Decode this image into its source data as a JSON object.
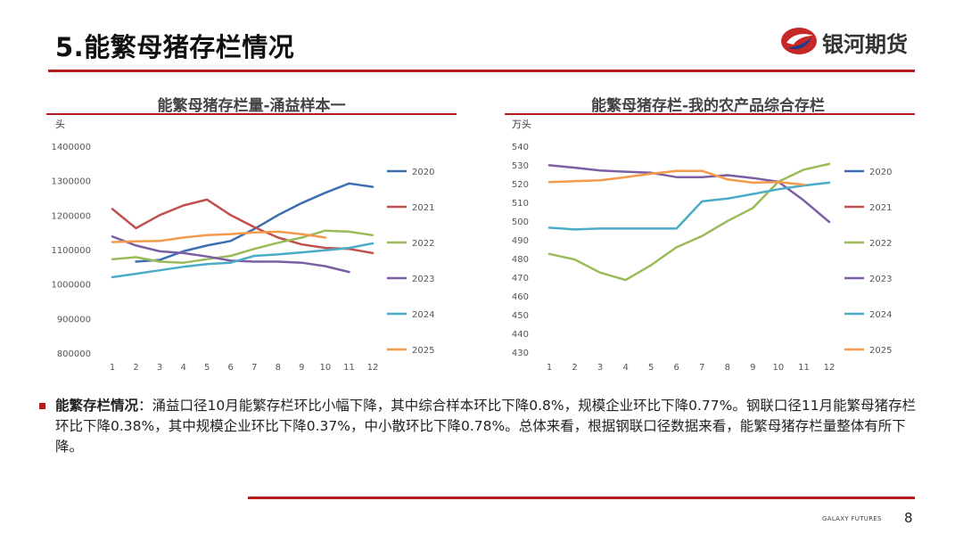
{
  "header": {
    "title": "5.能繁母猪存栏情况",
    "brand": "银河期货"
  },
  "colors": {
    "accent": "#b71c1c",
    "s2020": "#3d6fb0",
    "s2021": "#c0504d",
    "s2022": "#9bbb59",
    "s2023": "#7b5ea3",
    "s2024": "#4aacc6",
    "s2025": "#f39a4b"
  },
  "chart_data": [
    {
      "type": "line",
      "title": "能繁母猪存栏量-涌益样本一",
      "unit": "头",
      "x": [
        1,
        2,
        3,
        4,
        5,
        6,
        7,
        8,
        9,
        10,
        11,
        12
      ],
      "ylim": [
        800000,
        1400000
      ],
      "yticks": [
        800000,
        900000,
        1000000,
        1100000,
        1200000,
        1300000,
        1400000
      ],
      "legend_position": "right",
      "series": [
        {
          "name": "2020",
          "values": [
            null,
            1065000,
            1070000,
            1095000,
            1112000,
            1125000,
            1160000,
            1200000,
            1235000,
            1265000,
            1292000,
            1282000
          ]
        },
        {
          "name": "2021",
          "values": [
            1218000,
            1162000,
            1200000,
            1228000,
            1245000,
            1200000,
            1165000,
            1135000,
            1115000,
            1105000,
            1102000,
            1090000
          ]
        },
        {
          "name": "2022",
          "values": [
            1072000,
            1078000,
            1065000,
            1062000,
            1072000,
            1082000,
            1102000,
            1120000,
            1135000,
            1155000,
            1152000,
            1142000
          ]
        },
        {
          "name": "2023",
          "values": [
            1138000,
            1112000,
            1095000,
            1090000,
            1080000,
            1068000,
            1065000,
            1065000,
            1062000,
            1052000,
            1035000,
            null
          ]
        },
        {
          "name": "2024",
          "values": [
            1020000,
            1030000,
            1040000,
            1050000,
            1058000,
            1062000,
            1082000,
            1086000,
            1092000,
            1098000,
            1105000,
            1118000
          ]
        },
        {
          "name": "2025",
          "values": [
            1122000,
            1124000,
            1125000,
            1135000,
            1142000,
            1145000,
            1150000,
            1152000,
            1145000,
            1135000,
            null,
            null
          ]
        }
      ]
    },
    {
      "type": "line",
      "title": "能繁母猪存栏-我的农产品综合存栏",
      "unit": "万头",
      "x": [
        1,
        2,
        3,
        4,
        5,
        6,
        7,
        8,
        9,
        10,
        11,
        12
      ],
      "ylim": [
        430,
        540
      ],
      "yticks": [
        430,
        440,
        450,
        460,
        470,
        480,
        490,
        500,
        510,
        520,
        530,
        540
      ],
      "legend_position": "right",
      "series": [
        {
          "name": "2020",
          "values": [
            null,
            null,
            null,
            null,
            null,
            null,
            null,
            null,
            null,
            null,
            null,
            null
          ]
        },
        {
          "name": "2021",
          "values": [
            null,
            null,
            null,
            null,
            null,
            null,
            null,
            null,
            null,
            null,
            null,
            null
          ]
        },
        {
          "name": "2022",
          "values": [
            482.5,
            479.5,
            472.5,
            468.5,
            476.5,
            486,
            492,
            500,
            507,
            521,
            527.5,
            530.5
          ]
        },
        {
          "name": "2023",
          "values": [
            529.8,
            528.5,
            527,
            526.4,
            525.8,
            523.5,
            523.5,
            524.5,
            523,
            521,
            511,
            499.5
          ]
        },
        {
          "name": "2024",
          "values": [
            496.5,
            495.5,
            496,
            496,
            496,
            496,
            510.5,
            512,
            514.5,
            517,
            519,
            520.5
          ]
        },
        {
          "name": "2025",
          "values": [
            520.8,
            521.3,
            521.8,
            523.5,
            525.3,
            526.8,
            526.8,
            522.3,
            520.5,
            520.8,
            519.5,
            null
          ]
        }
      ]
    }
  ],
  "summary": {
    "lead": "能繁存栏情况",
    "text": "：涌益口径10月能繁存栏环比小幅下降，其中综合样本环比下降0.8%，规模企业环比下降0.77%。钢联口径11月能繁母猪存栏环比下降0.38%，其中规模企业环比下降0.37%，中小散环比下降0.78%。总体来看，根据钢联口径数据来看，能繁母猪存栏量整体有所下降。"
  },
  "footer": {
    "brand": "GALAXY FUTURES",
    "page": "8"
  }
}
